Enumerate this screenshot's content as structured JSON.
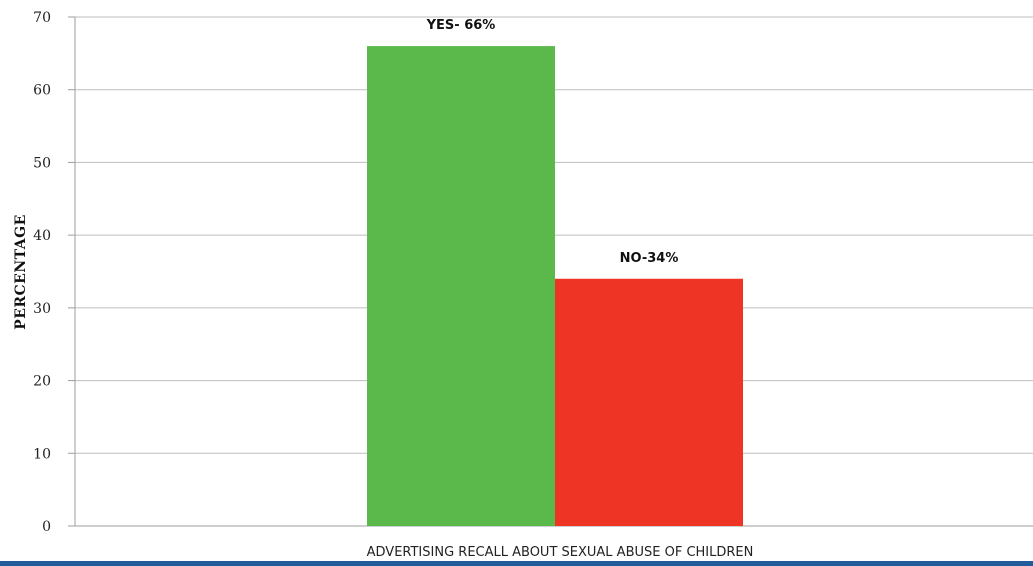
{
  "chart_data": {
    "type": "bar",
    "categories": [
      "YES",
      "NO"
    ],
    "values": [
      66,
      34
    ],
    "data_labels": [
      "YES- 66%",
      "NO-34%"
    ],
    "colors": [
      "#5bb84a",
      "#ee3424"
    ],
    "title": "",
    "xlabel": "ADVERTISING RECALL ABOUT SEXUAL ABUSE OF CHILDREN",
    "ylabel": "PERCENTAGE",
    "ylim": [
      0,
      70
    ],
    "yticks": [
      0,
      10,
      20,
      30,
      40,
      50,
      60,
      70
    ],
    "grid": true,
    "legend": "none"
  },
  "colors": {
    "bottom_strip": "#1f5c99",
    "gridline": "#bdbdbd"
  }
}
